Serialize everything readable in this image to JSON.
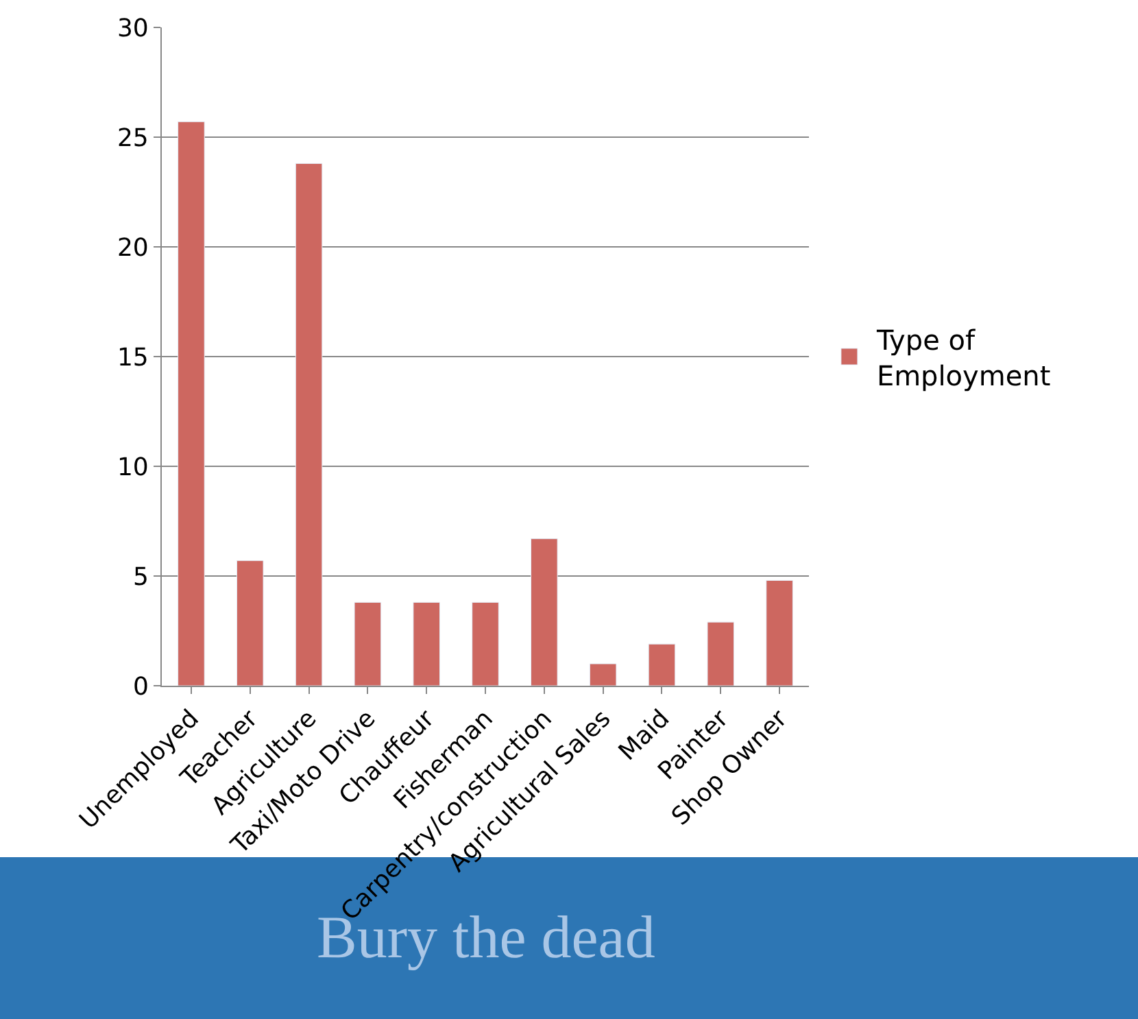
{
  "chart_data": {
    "type": "bar",
    "categories": [
      "Unemployed",
      "Teacher",
      "Agriculture",
      "Taxi/Moto Drive",
      "Chauffeur",
      "Fisherman",
      "Carpentry/construction",
      "Agricultural Sales",
      "Maid",
      "Painter",
      "Shop Owner"
    ],
    "series": [
      {
        "name": "Type of Employment",
        "color": "#cd6760",
        "values": [
          25.7,
          5.7,
          23.8,
          3.8,
          3.8,
          3.8,
          6.7,
          1.0,
          1.9,
          2.9,
          4.8
        ]
      }
    ],
    "ylim": [
      0,
      30
    ],
    "yticks": [
      0,
      5,
      10,
      15,
      20,
      25,
      30
    ],
    "grid": "y",
    "legend": "right",
    "annotations": [
      "Bury the dead"
    ]
  }
}
